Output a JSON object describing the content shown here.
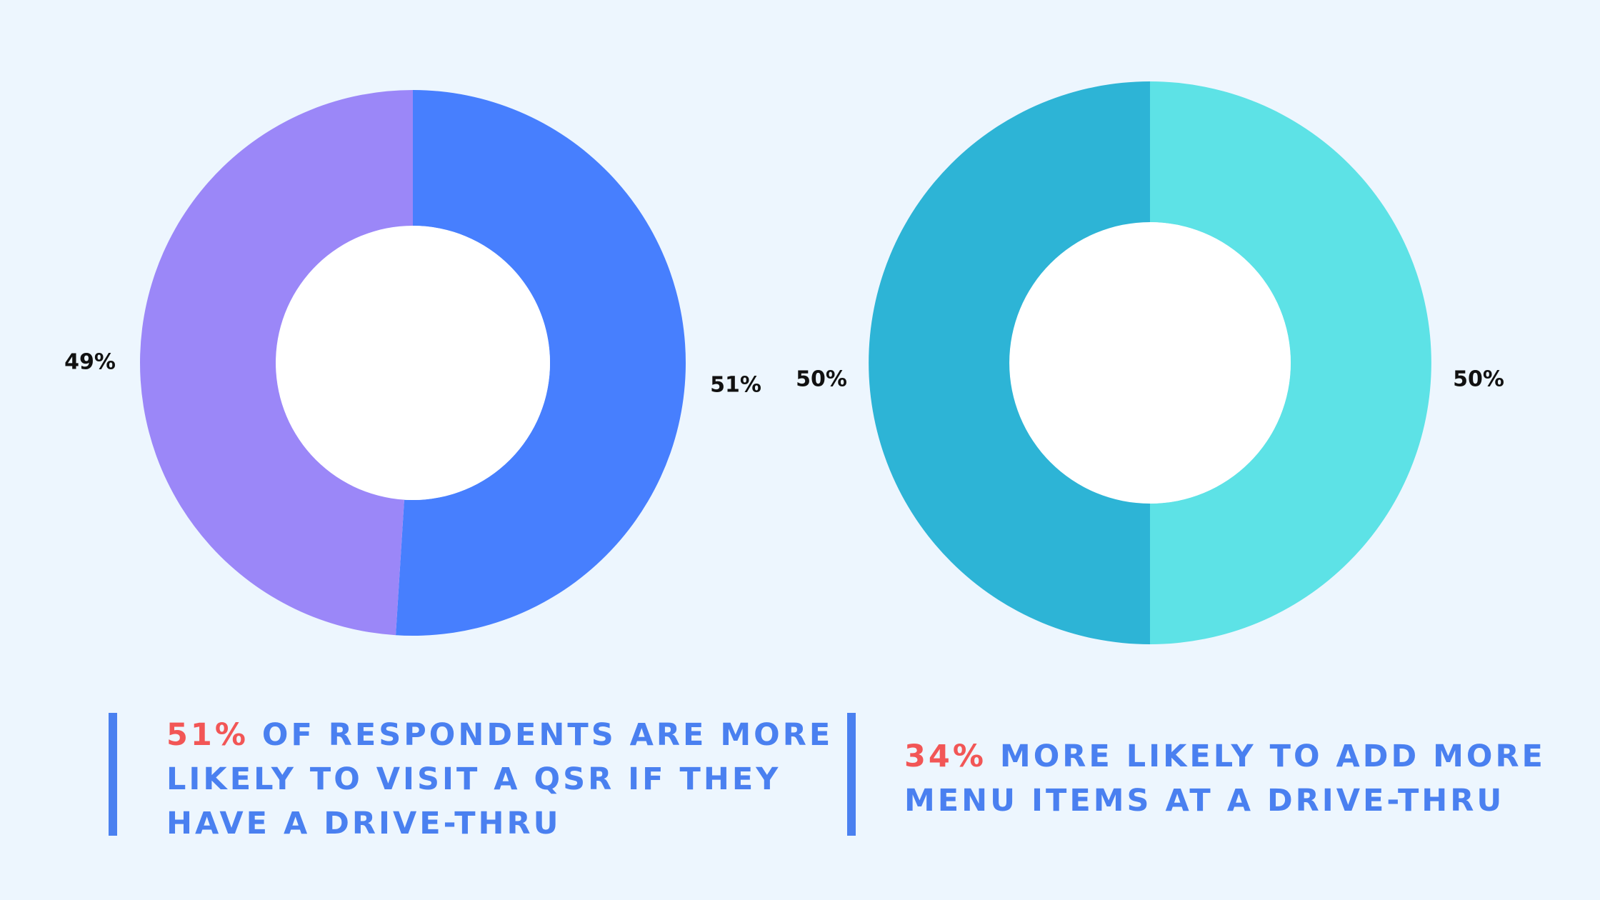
{
  "colors": {
    "background": "#edf6fe",
    "caption_text": "#4a80f0",
    "highlight": "#f25656",
    "donut_hole": "#ffffff"
  },
  "chart_data": [
    {
      "type": "pie",
      "variant": "donut",
      "start_angle_deg": 0,
      "direction": "clockwise",
      "slices": [
        {
          "label": "51%",
          "value": 51,
          "color": "#477ffe"
        },
        {
          "label": "49%",
          "value": 49,
          "color": "#9b87f8"
        }
      ]
    },
    {
      "type": "pie",
      "variant": "donut",
      "start_angle_deg": 0,
      "direction": "clockwise",
      "slices": [
        {
          "label": "50%",
          "value": 50,
          "color": "#5de2e6"
        },
        {
          "label": "50%",
          "value": 50,
          "color": "#2db4d6"
        }
      ]
    }
  ],
  "captions": [
    {
      "highlight": "51%",
      "line1_rest": " OF RESPONDENTS ARE MORE",
      "line2": "LIKELY TO VISIT A QSR IF THEY",
      "line3": "HAVE A DRIVE-THRU"
    },
    {
      "highlight": "34%",
      "line1_rest": " MORE LIKELY TO ADD MORE",
      "line2": "MENU ITEMS AT A DRIVE-THRU"
    }
  ]
}
